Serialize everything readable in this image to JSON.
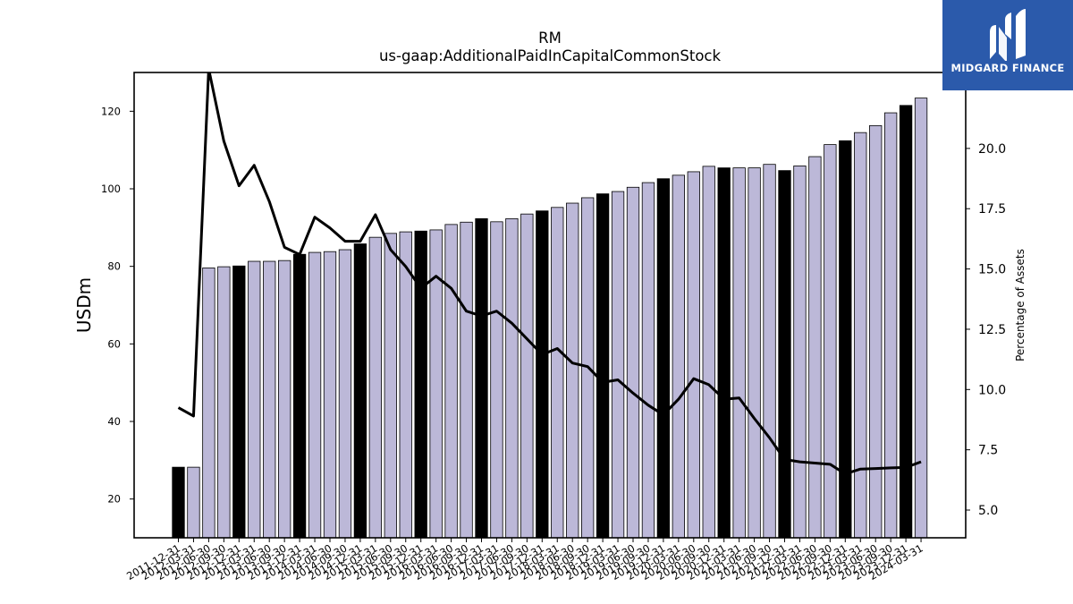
{
  "logo": {
    "text": "MIDGARD FINANCE",
    "icon": "midgard-logo-mark-icon"
  },
  "colors": {
    "bar_default": "#bcb8d8",
    "bar_highlight": "#000000",
    "line": "#000000",
    "logo_bg": "#2b5aab"
  },
  "chart_data": {
    "type": "bar",
    "title": "RM",
    "subtitle": "us-gaap:AdditionalPaidInCapitalCommonStock",
    "ylabel": "USDm",
    "y2label": "Percentage of Assets",
    "ylim": [
      10,
      130
    ],
    "y2lim": [
      3.85,
      23.15
    ],
    "yticks": [
      20,
      40,
      60,
      80,
      100,
      120
    ],
    "y2ticks": [
      "5.0",
      "7.5",
      "10.0",
      "12.5",
      "15.0",
      "17.5",
      "20.0"
    ],
    "categories": [
      "2011-12-31",
      "2012-03-31",
      "2012-06-30",
      "2012-09-30",
      "2012-12-31",
      "2013-03-31",
      "2013-06-30",
      "2013-09-30",
      "2013-12-31",
      "2014-03-31",
      "2014-06-30",
      "2014-09-30",
      "2014-12-31",
      "2015-03-31",
      "2015-06-30",
      "2015-09-30",
      "2015-12-31",
      "2016-03-31",
      "2016-06-30",
      "2016-09-30",
      "2016-12-31",
      "2017-03-31",
      "2017-06-30",
      "2017-09-30",
      "2017-12-31",
      "2018-03-31",
      "2018-06-30",
      "2018-09-30",
      "2018-12-31",
      "2019-03-31",
      "2019-06-30",
      "2019-09-30",
      "2019-12-31",
      "2020-03-31",
      "2020-06-30",
      "2020-09-30",
      "2020-12-31",
      "2021-03-31",
      "2021-06-30",
      "2021-09-30",
      "2021-12-31",
      "2022-03-31",
      "2022-06-30",
      "2022-09-30",
      "2022-12-31",
      "2023-03-31",
      "2023-06-30",
      "2023-09-30",
      "2023-12-31",
      "2024-03-31"
    ],
    "xtick_labels": [
      "2011-12-31",
      "2012-03-31",
      "2012-06-30",
      "2012-09-30",
      "2012-12-31",
      "2013-03-31",
      "2013-06-30",
      "2013-09-30",
      "2013-12-31",
      "2014-03-31",
      "2014-06-30",
      "2014-09-30",
      "2014-12-31",
      "2015-03-31",
      "2015-06-30",
      "2015-09-30",
      "2015-12-31",
      "2016-03-31",
      "2016-06-30",
      "2016-09-30",
      "2016-12-31",
      "2017-03-31",
      "2017-06-30",
      "2017-09-30",
      "2017-12-31",
      "2018-03-31",
      "2018-06-30",
      "2018-09-30",
      "2018-12-31",
      "2019-03-31",
      "2019-06-30",
      "2019-09-30",
      "2019-12-31",
      "2020-03-31",
      "2020-06-30",
      "2020-09-30",
      "2020-12-31",
      "2021-03-31",
      "2021-06-30",
      "2021-09-30",
      "2021-12-31",
      "2022-03-31",
      "2022-06-30",
      "2022-09-30",
      "2022-12-31",
      "2023-03-31",
      "2023-06-30",
      "2023-09-30",
      "2023-12-31",
      "2024-03-31"
    ],
    "bar_values": [
      28.2,
      28.2,
      79.6,
      79.9,
      80.1,
      81.3,
      81.3,
      81.5,
      83.1,
      83.6,
      83.8,
      84.3,
      85.8,
      87.5,
      88.5,
      88.9,
      89.1,
      89.4,
      90.8,
      91.4,
      92.3,
      91.5,
      92.3,
      93.5,
      94.3,
      95.2,
      96.3,
      97.7,
      98.7,
      99.3,
      100.4,
      101.6,
      102.6,
      103.5,
      104.4,
      105.8,
      105.4,
      105.4,
      105.4,
      106.3,
      104.7,
      105.9,
      108.3,
      111.4,
      112.4,
      114.5,
      116.3,
      119.6,
      121.5,
      123.4
    ],
    "bar_highlight": [
      true,
      false,
      false,
      false,
      true,
      false,
      false,
      false,
      true,
      false,
      false,
      false,
      true,
      false,
      false,
      false,
      true,
      false,
      false,
      false,
      true,
      false,
      false,
      false,
      true,
      false,
      false,
      false,
      true,
      false,
      false,
      false,
      true,
      false,
      false,
      false,
      true,
      false,
      false,
      false,
      true,
      false,
      false,
      false,
      true,
      false,
      false,
      false,
      true,
      false
    ],
    "line_values": [
      9.25,
      8.9,
      23.3,
      20.3,
      18.45,
      19.3,
      17.8,
      15.9,
      15.6,
      17.15,
      16.7,
      16.15,
      16.15,
      17.25,
      15.8,
      15.1,
      14.2,
      14.7,
      14.2,
      13.25,
      13.05,
      13.25,
      12.75,
      12.1,
      11.45,
      11.7,
      11.1,
      10.95,
      10.3,
      10.4,
      9.85,
      9.35,
      8.95,
      9.6,
      10.45,
      10.2,
      9.6,
      9.65,
      8.8,
      8.0,
      7.1,
      7.0,
      6.95,
      6.9,
      6.5,
      6.7,
      6.72,
      6.75,
      6.77,
      7.0
    ]
  }
}
